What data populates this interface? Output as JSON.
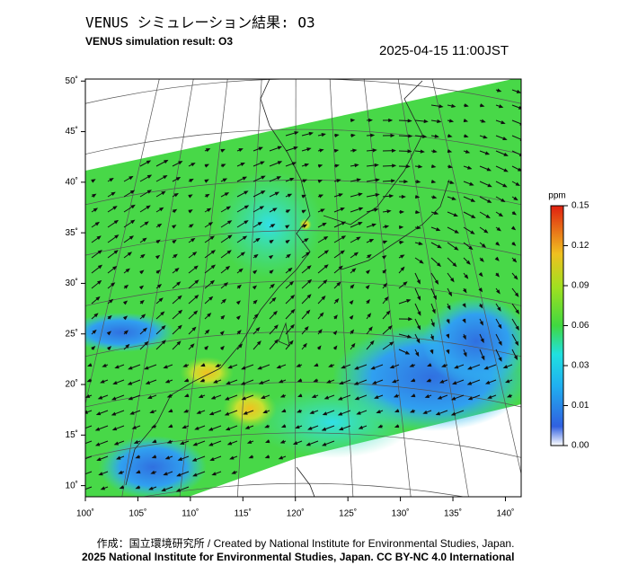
{
  "header": {
    "title": "VENUS シミュレーション結果: O3",
    "subtitle": "VENUS simulation result: O3",
    "timestamp": "2025-04-15 11:00JST"
  },
  "map": {
    "xlim": [
      100,
      141.5
    ],
    "ylim": [
      8.9,
      50.2
    ],
    "xticks": [
      {
        "value": 100,
        "label": "100˚"
      },
      {
        "value": 105,
        "label": "105˚"
      },
      {
        "value": 110,
        "label": "110˚"
      },
      {
        "value": 115,
        "label": "115˚"
      },
      {
        "value": 120,
        "label": "120˚"
      },
      {
        "value": 125,
        "label": "125˚"
      },
      {
        "value": 130,
        "label": "130˚"
      },
      {
        "value": 135,
        "label": "135˚"
      },
      {
        "value": 140,
        "label": "140˚"
      }
    ],
    "yticks": [
      {
        "value": 10,
        "label": "10˚"
      },
      {
        "value": 15,
        "label": "15˚"
      },
      {
        "value": 20,
        "label": "20˚"
      },
      {
        "value": 25,
        "label": "25˚"
      },
      {
        "value": 30,
        "label": "30˚"
      },
      {
        "value": 35,
        "label": "35˚"
      },
      {
        "value": 40,
        "label": "40˚"
      },
      {
        "value": 45,
        "label": "45˚"
      },
      {
        "value": 50,
        "label": "50˚"
      }
    ]
  },
  "colorbar": {
    "unit": "ppm",
    "ticks": [
      {
        "value": 0,
        "label": "0.00"
      },
      0.01,
      0.03,
      0.06,
      0.09,
      0.12,
      0.15
    ]
  },
  "footer": {
    "credit": "作成：国立環境研究所 / Created by National Institute for Environmental Studies, Japan.",
    "license": "2025 National Institute for Environmental Studies, Japan. CC BY-NC 4.0 International"
  }
}
